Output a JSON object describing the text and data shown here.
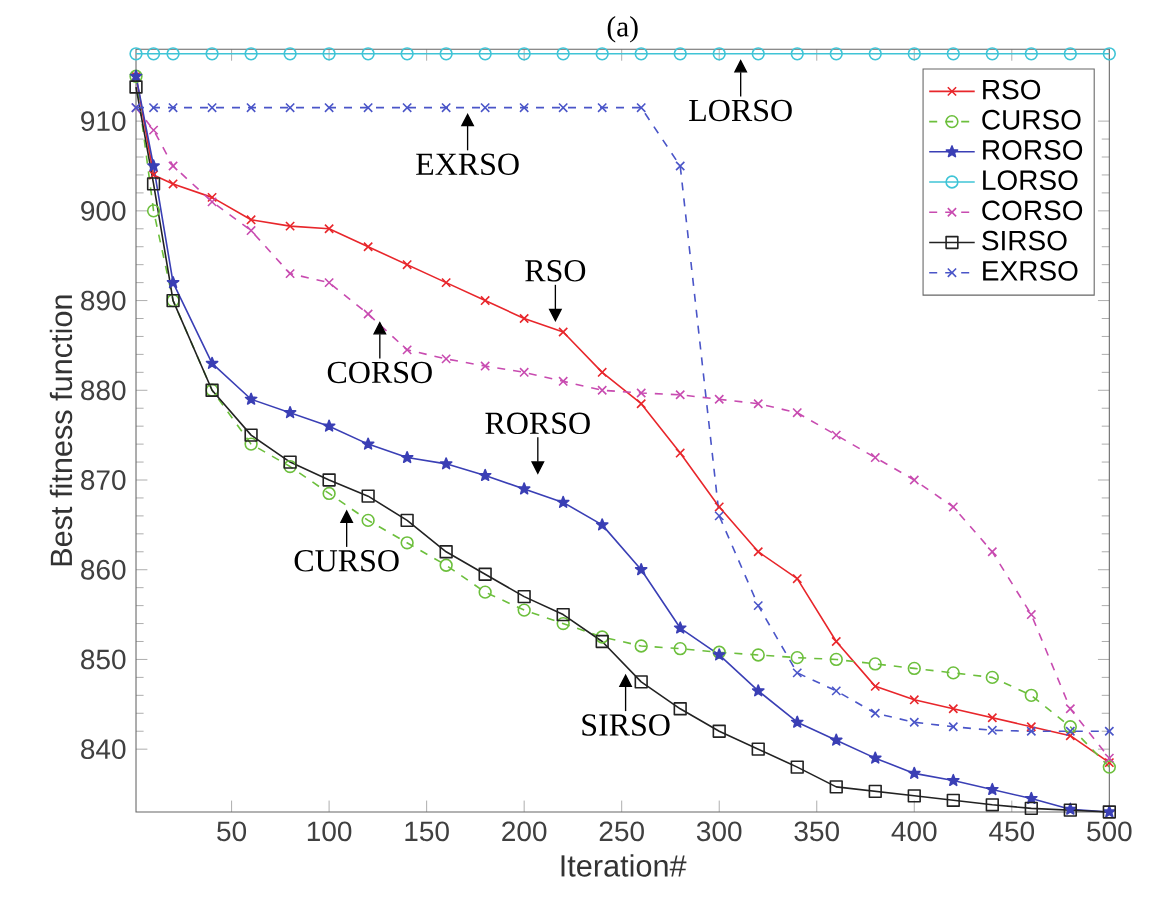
{
  "chart_data": {
    "type": "line",
    "title": "(a)",
    "xlabel": "Iteration#",
    "ylabel": "Best fitness function",
    "xlim": [
      1,
      500
    ],
    "xticks": [
      50,
      100,
      150,
      200,
      250,
      300,
      350,
      400,
      450,
      500
    ],
    "ylim": [
      833,
      918
    ],
    "yticks": [
      840,
      850,
      860,
      870,
      880,
      890,
      900,
      910
    ],
    "grid": false,
    "legend": "top right",
    "x": [
      1,
      10,
      20,
      40,
      60,
      80,
      100,
      120,
      140,
      160,
      180,
      200,
      220,
      240,
      260,
      280,
      300,
      320,
      340,
      360,
      380,
      400,
      420,
      440,
      460,
      480,
      500
    ],
    "series": [
      {
        "name": "RSO",
        "color": "#e8262b",
        "marker": "cross",
        "line_style": "solid",
        "values": [
          915,
          904,
          903,
          901.5,
          899,
          898.3,
          898,
          896,
          894,
          892,
          890,
          888,
          886.5,
          882,
          878.5,
          873,
          867,
          862,
          859,
          852,
          847,
          845.5,
          844.5,
          843.5,
          842.5,
          841.5,
          838.5
        ]
      },
      {
        "name": "CURSO",
        "color": "#6cbf3c",
        "marker": "circle",
        "line_style": "dashed",
        "values": [
          915,
          900,
          890,
          880,
          874,
          871.5,
          868.5,
          865.5,
          863,
          860.5,
          857.5,
          855.5,
          854,
          852.5,
          851.5,
          851.2,
          850.8,
          850.5,
          850.2,
          850,
          849.5,
          849,
          848.5,
          848,
          846,
          842.5,
          838
        ]
      },
      {
        "name": "RORSO",
        "color": "#3a3fb5",
        "marker": "star",
        "line_style": "solid",
        "values": [
          915,
          905,
          892,
          883,
          879,
          877.5,
          876,
          874,
          872.5,
          871.8,
          870.5,
          869,
          867.5,
          865,
          860,
          853.5,
          850.5,
          846.5,
          843,
          841,
          839,
          837.3,
          836.5,
          835.5,
          834.5,
          833.3,
          833
        ]
      },
      {
        "name": "LORSO",
        "color": "#3fc4d6",
        "marker": "circle",
        "line_style": "solid",
        "values": [
          917.5,
          917.5,
          917.5,
          917.5,
          917.5,
          917.5,
          917.5,
          917.5,
          917.5,
          917.5,
          917.5,
          917.5,
          917.5,
          917.5,
          917.5,
          917.5,
          917.5,
          917.5,
          917.5,
          917.5,
          917.5,
          917.5,
          917.5,
          917.5,
          917.5,
          917.5,
          917.5
        ]
      },
      {
        "name": "CORSO",
        "color": "#c84bb0",
        "marker": "cross",
        "line_style": "dashed",
        "values": [
          911.5,
          909,
          905,
          901,
          897.8,
          893,
          892,
          888.5,
          884.5,
          883.5,
          882.7,
          882,
          881,
          880,
          879.7,
          879.5,
          879,
          878.5,
          877.5,
          875,
          872.5,
          870,
          867,
          862,
          855,
          844.5,
          839
        ]
      },
      {
        "name": "SIRSO",
        "color": "#222222",
        "marker": "square",
        "line_style": "solid",
        "values": [
          913.8,
          903,
          890,
          880,
          875,
          872,
          870,
          868.2,
          865.5,
          862,
          859.5,
          857,
          855,
          852,
          847.5,
          844.5,
          842,
          840,
          838,
          835.8,
          835.3,
          834.8,
          834.3,
          833.8,
          833.4,
          833.2,
          833
        ]
      },
      {
        "name": "EXRSO",
        "color": "#4a55c8",
        "marker": "cross",
        "line_style": "dashed",
        "values": [
          911.5,
          911.5,
          911.5,
          911.5,
          911.5,
          911.5,
          911.5,
          911.5,
          911.5,
          911.5,
          911.5,
          911.5,
          911.5,
          911.5,
          911.5,
          905,
          866,
          856,
          848.5,
          846.5,
          844,
          843,
          842.5,
          842.1,
          842,
          842,
          842
        ]
      }
    ],
    "annotations": [
      {
        "text": "EXRSO",
        "x": 171,
        "y": 911.5
      },
      {
        "text": "LORSO",
        "x": 311,
        "y": 917.5
      },
      {
        "text": "RSO",
        "x": 216,
        "y": 887
      },
      {
        "text": "CORSO",
        "x": 126,
        "y": 888.3
      },
      {
        "text": "RORSO",
        "x": 207,
        "y": 870
      },
      {
        "text": "CURSO",
        "x": 109,
        "y": 867.3
      },
      {
        "text": "SIRSO",
        "x": 252,
        "y": 849
      }
    ]
  }
}
